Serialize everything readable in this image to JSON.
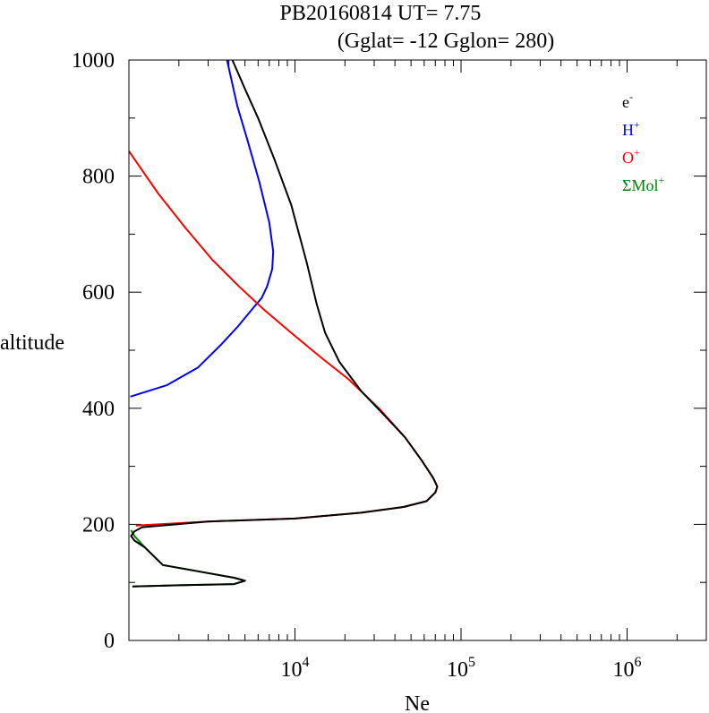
{
  "title_line1": "PB20160814   UT=  7.75",
  "title_line2": "(Gglat= -12   Gglon=  280)",
  "chart_data": {
    "type": "line",
    "xlabel": "Ne",
    "ylabel": "altitude",
    "x_scale": "log",
    "xlim": [
      1000,
      3000000
    ],
    "ylim": [
      0,
      1000
    ],
    "grid": false,
    "legend_position": "top-right",
    "y_ticks": [
      "0",
      "200",
      "400",
      "600",
      "800",
      "1000"
    ],
    "x_ticks": [
      {
        "base": "10",
        "exp": "4",
        "value": 10000
      },
      {
        "base": "10",
        "exp": "5",
        "value": 100000
      },
      {
        "base": "10",
        "exp": "6",
        "value": 1000000
      }
    ],
    "series": [
      {
        "key": "electrons",
        "legend_base": "e",
        "legend_sup": "-",
        "color": "#000000",
        "points": [
          [
            4200,
            1000
          ],
          [
            5000,
            950
          ],
          [
            6000,
            900
          ],
          [
            7500,
            830
          ],
          [
            9500,
            750
          ],
          [
            11800,
            650
          ],
          [
            13500,
            580
          ],
          [
            15200,
            530
          ],
          [
            18500,
            480
          ],
          [
            25000,
            430
          ],
          [
            34000,
            390
          ],
          [
            46000,
            350
          ],
          [
            58000,
            310
          ],
          [
            68000,
            280
          ],
          [
            72000,
            265
          ],
          [
            70000,
            255
          ],
          [
            62000,
            240
          ],
          [
            45000,
            230
          ],
          [
            25000,
            220
          ],
          [
            10000,
            210
          ],
          [
            3000,
            205
          ],
          [
            1200,
            195
          ],
          [
            1080,
            188
          ],
          [
            1030,
            180
          ],
          [
            1080,
            172
          ],
          [
            1250,
            160
          ],
          [
            1600,
            130
          ],
          [
            2500,
            120
          ],
          [
            4300,
            108
          ],
          [
            5000,
            103
          ],
          [
            4300,
            97
          ],
          [
            2000,
            95
          ],
          [
            1050,
            93
          ]
        ]
      },
      {
        "key": "hydrogen",
        "legend_base": "H",
        "legend_sup": "+",
        "color": "#0000ff",
        "points": [
          [
            3900,
            1000
          ],
          [
            4500,
            920
          ],
          [
            5200,
            860
          ],
          [
            6100,
            790
          ],
          [
            7000,
            720
          ],
          [
            7400,
            670
          ],
          [
            7300,
            640
          ],
          [
            6800,
            610
          ],
          [
            6300,
            590
          ],
          [
            5500,
            570
          ],
          [
            4500,
            540
          ],
          [
            3600,
            510
          ],
          [
            2600,
            470
          ],
          [
            1700,
            440
          ],
          [
            1020,
            420
          ]
        ]
      },
      {
        "key": "oxygen",
        "legend_base": "O",
        "legend_sup": "+",
        "color": "#ff0000",
        "points": [
          [
            1000,
            843
          ],
          [
            1500,
            770
          ],
          [
            2200,
            710
          ],
          [
            3200,
            655
          ],
          [
            4600,
            610
          ],
          [
            6500,
            570
          ],
          [
            9500,
            530
          ],
          [
            14000,
            490
          ],
          [
            21000,
            450
          ],
          [
            32000,
            400
          ],
          [
            46000,
            350
          ],
          [
            58000,
            310
          ],
          [
            68000,
            280
          ],
          [
            72000,
            265
          ],
          [
            70000,
            255
          ],
          [
            62000,
            240
          ],
          [
            45000,
            230
          ],
          [
            25000,
            220
          ],
          [
            10000,
            210
          ],
          [
            3000,
            205
          ],
          [
            1100,
            198
          ]
        ]
      },
      {
        "key": "molecular",
        "legend_base": "ΣMol",
        "legend_sup": "+",
        "color": "#007f00",
        "points": [
          [
            1030,
            190
          ],
          [
            1080,
            180
          ],
          [
            1250,
            160
          ],
          [
            1600,
            130
          ],
          [
            2500,
            120
          ],
          [
            4300,
            108
          ],
          [
            5000,
            103
          ],
          [
            4300,
            97
          ],
          [
            2000,
            95
          ],
          [
            1050,
            93
          ]
        ]
      }
    ]
  }
}
